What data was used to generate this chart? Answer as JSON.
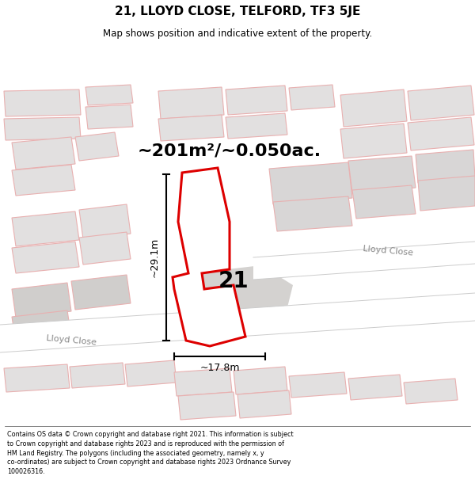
{
  "title": "21, LLOYD CLOSE, TELFORD, TF3 5JE",
  "subtitle": "Map shows position and indicative extent of the property.",
  "area_text": "~201m²/~0.050ac.",
  "width_label": "~17.8m",
  "height_label": "~29.1m",
  "property_number": "21",
  "footer_text": "Contains OS data © Crown copyright and database right 2021. This information is subject to Crown copyright and database rights 2023 and is reproduced with the permission of HM Land Registry. The polygons (including the associated geometry, namely x, y co-ordinates) are subject to Crown copyright and database rights 2023 Ordnance Survey 100026316.",
  "bg_color": "#f5f3f2",
  "building_fill": "#e2e0e0",
  "building_outline": "#e8b0b0",
  "highlight_color": "#dd0000",
  "highlight_fill": "#ffffff",
  "road_color": "#ffffff",
  "road_edge": "#cccccc",
  "text_road": "#888888",
  "title_fontsize": 11,
  "subtitle_fontsize": 8.5,
  "footer_fontsize": 5.8,
  "area_fontsize": 16,
  "label_fontsize": 9,
  "number_fontsize": 20,
  "road_label_fontsize": 8
}
